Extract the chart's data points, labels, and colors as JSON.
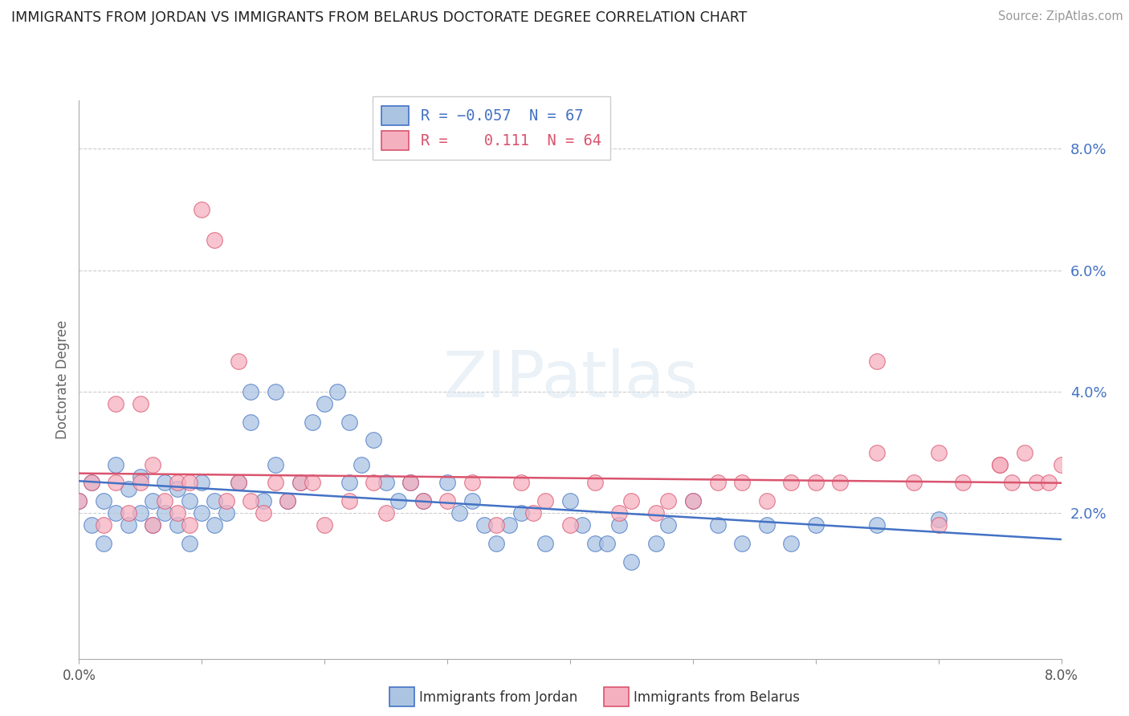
{
  "title": "IMMIGRANTS FROM JORDAN VS IMMIGRANTS FROM BELARUS DOCTORATE DEGREE CORRELATION CHART",
  "source": "Source: ZipAtlas.com",
  "ylabel": "Doctorate Degree",
  "color_jordan": "#aac4e2",
  "color_belarus": "#f5b0c0",
  "line_jordan": "#4472c4",
  "line_belarus": "#d9546e",
  "xmin": 0.0,
  "xmax": 0.08,
  "ymin": -0.004,
  "ymax": 0.088,
  "ytick_vals": [
    0.0,
    0.02,
    0.04,
    0.06,
    0.08
  ],
  "ytick_labels": [
    "",
    "2.0%",
    "4.0%",
    "6.0%",
    "8.0%"
  ],
  "jordan_x": [
    0.0,
    0.001,
    0.001,
    0.002,
    0.002,
    0.003,
    0.003,
    0.004,
    0.004,
    0.005,
    0.005,
    0.006,
    0.006,
    0.007,
    0.007,
    0.008,
    0.008,
    0.009,
    0.009,
    0.01,
    0.01,
    0.011,
    0.011,
    0.012,
    0.013,
    0.014,
    0.014,
    0.015,
    0.016,
    0.016,
    0.017,
    0.018,
    0.019,
    0.02,
    0.021,
    0.022,
    0.022,
    0.023,
    0.024,
    0.025,
    0.026,
    0.027,
    0.028,
    0.03,
    0.031,
    0.032,
    0.033,
    0.034,
    0.035,
    0.036,
    0.038,
    0.04,
    0.041,
    0.042,
    0.043,
    0.044,
    0.045,
    0.047,
    0.048,
    0.05,
    0.052,
    0.054,
    0.056,
    0.058,
    0.06,
    0.065,
    0.07
  ],
  "jordan_y": [
    0.022,
    0.018,
    0.025,
    0.015,
    0.022,
    0.02,
    0.028,
    0.018,
    0.024,
    0.02,
    0.026,
    0.018,
    0.022,
    0.02,
    0.025,
    0.018,
    0.024,
    0.015,
    0.022,
    0.02,
    0.025,
    0.018,
    0.022,
    0.02,
    0.025,
    0.04,
    0.035,
    0.022,
    0.028,
    0.04,
    0.022,
    0.025,
    0.035,
    0.038,
    0.04,
    0.025,
    0.035,
    0.028,
    0.032,
    0.025,
    0.022,
    0.025,
    0.022,
    0.025,
    0.02,
    0.022,
    0.018,
    0.015,
    0.018,
    0.02,
    0.015,
    0.022,
    0.018,
    0.015,
    0.015,
    0.018,
    0.012,
    0.015,
    0.018,
    0.022,
    0.018,
    0.015,
    0.018,
    0.015,
    0.018,
    0.018,
    0.019
  ],
  "belarus_x": [
    0.0,
    0.001,
    0.002,
    0.003,
    0.003,
    0.004,
    0.005,
    0.005,
    0.006,
    0.006,
    0.007,
    0.008,
    0.008,
    0.009,
    0.009,
    0.01,
    0.011,
    0.012,
    0.013,
    0.013,
    0.014,
    0.015,
    0.016,
    0.017,
    0.018,
    0.019,
    0.02,
    0.022,
    0.024,
    0.025,
    0.027,
    0.028,
    0.03,
    0.032,
    0.034,
    0.036,
    0.037,
    0.038,
    0.04,
    0.042,
    0.044,
    0.045,
    0.047,
    0.048,
    0.05,
    0.052,
    0.054,
    0.056,
    0.058,
    0.06,
    0.062,
    0.065,
    0.068,
    0.07,
    0.072,
    0.075,
    0.076,
    0.077,
    0.078,
    0.079,
    0.08,
    0.065,
    0.07,
    0.075
  ],
  "belarus_y": [
    0.022,
    0.025,
    0.018,
    0.025,
    0.038,
    0.02,
    0.025,
    0.038,
    0.018,
    0.028,
    0.022,
    0.02,
    0.025,
    0.018,
    0.025,
    0.07,
    0.065,
    0.022,
    0.025,
    0.045,
    0.022,
    0.02,
    0.025,
    0.022,
    0.025,
    0.025,
    0.018,
    0.022,
    0.025,
    0.02,
    0.025,
    0.022,
    0.022,
    0.025,
    0.018,
    0.025,
    0.02,
    0.022,
    0.018,
    0.025,
    0.02,
    0.022,
    0.02,
    0.022,
    0.022,
    0.025,
    0.025,
    0.022,
    0.025,
    0.025,
    0.025,
    0.03,
    0.025,
    0.018,
    0.025,
    0.028,
    0.025,
    0.03,
    0.025,
    0.025,
    0.028,
    0.045,
    0.03,
    0.028
  ]
}
